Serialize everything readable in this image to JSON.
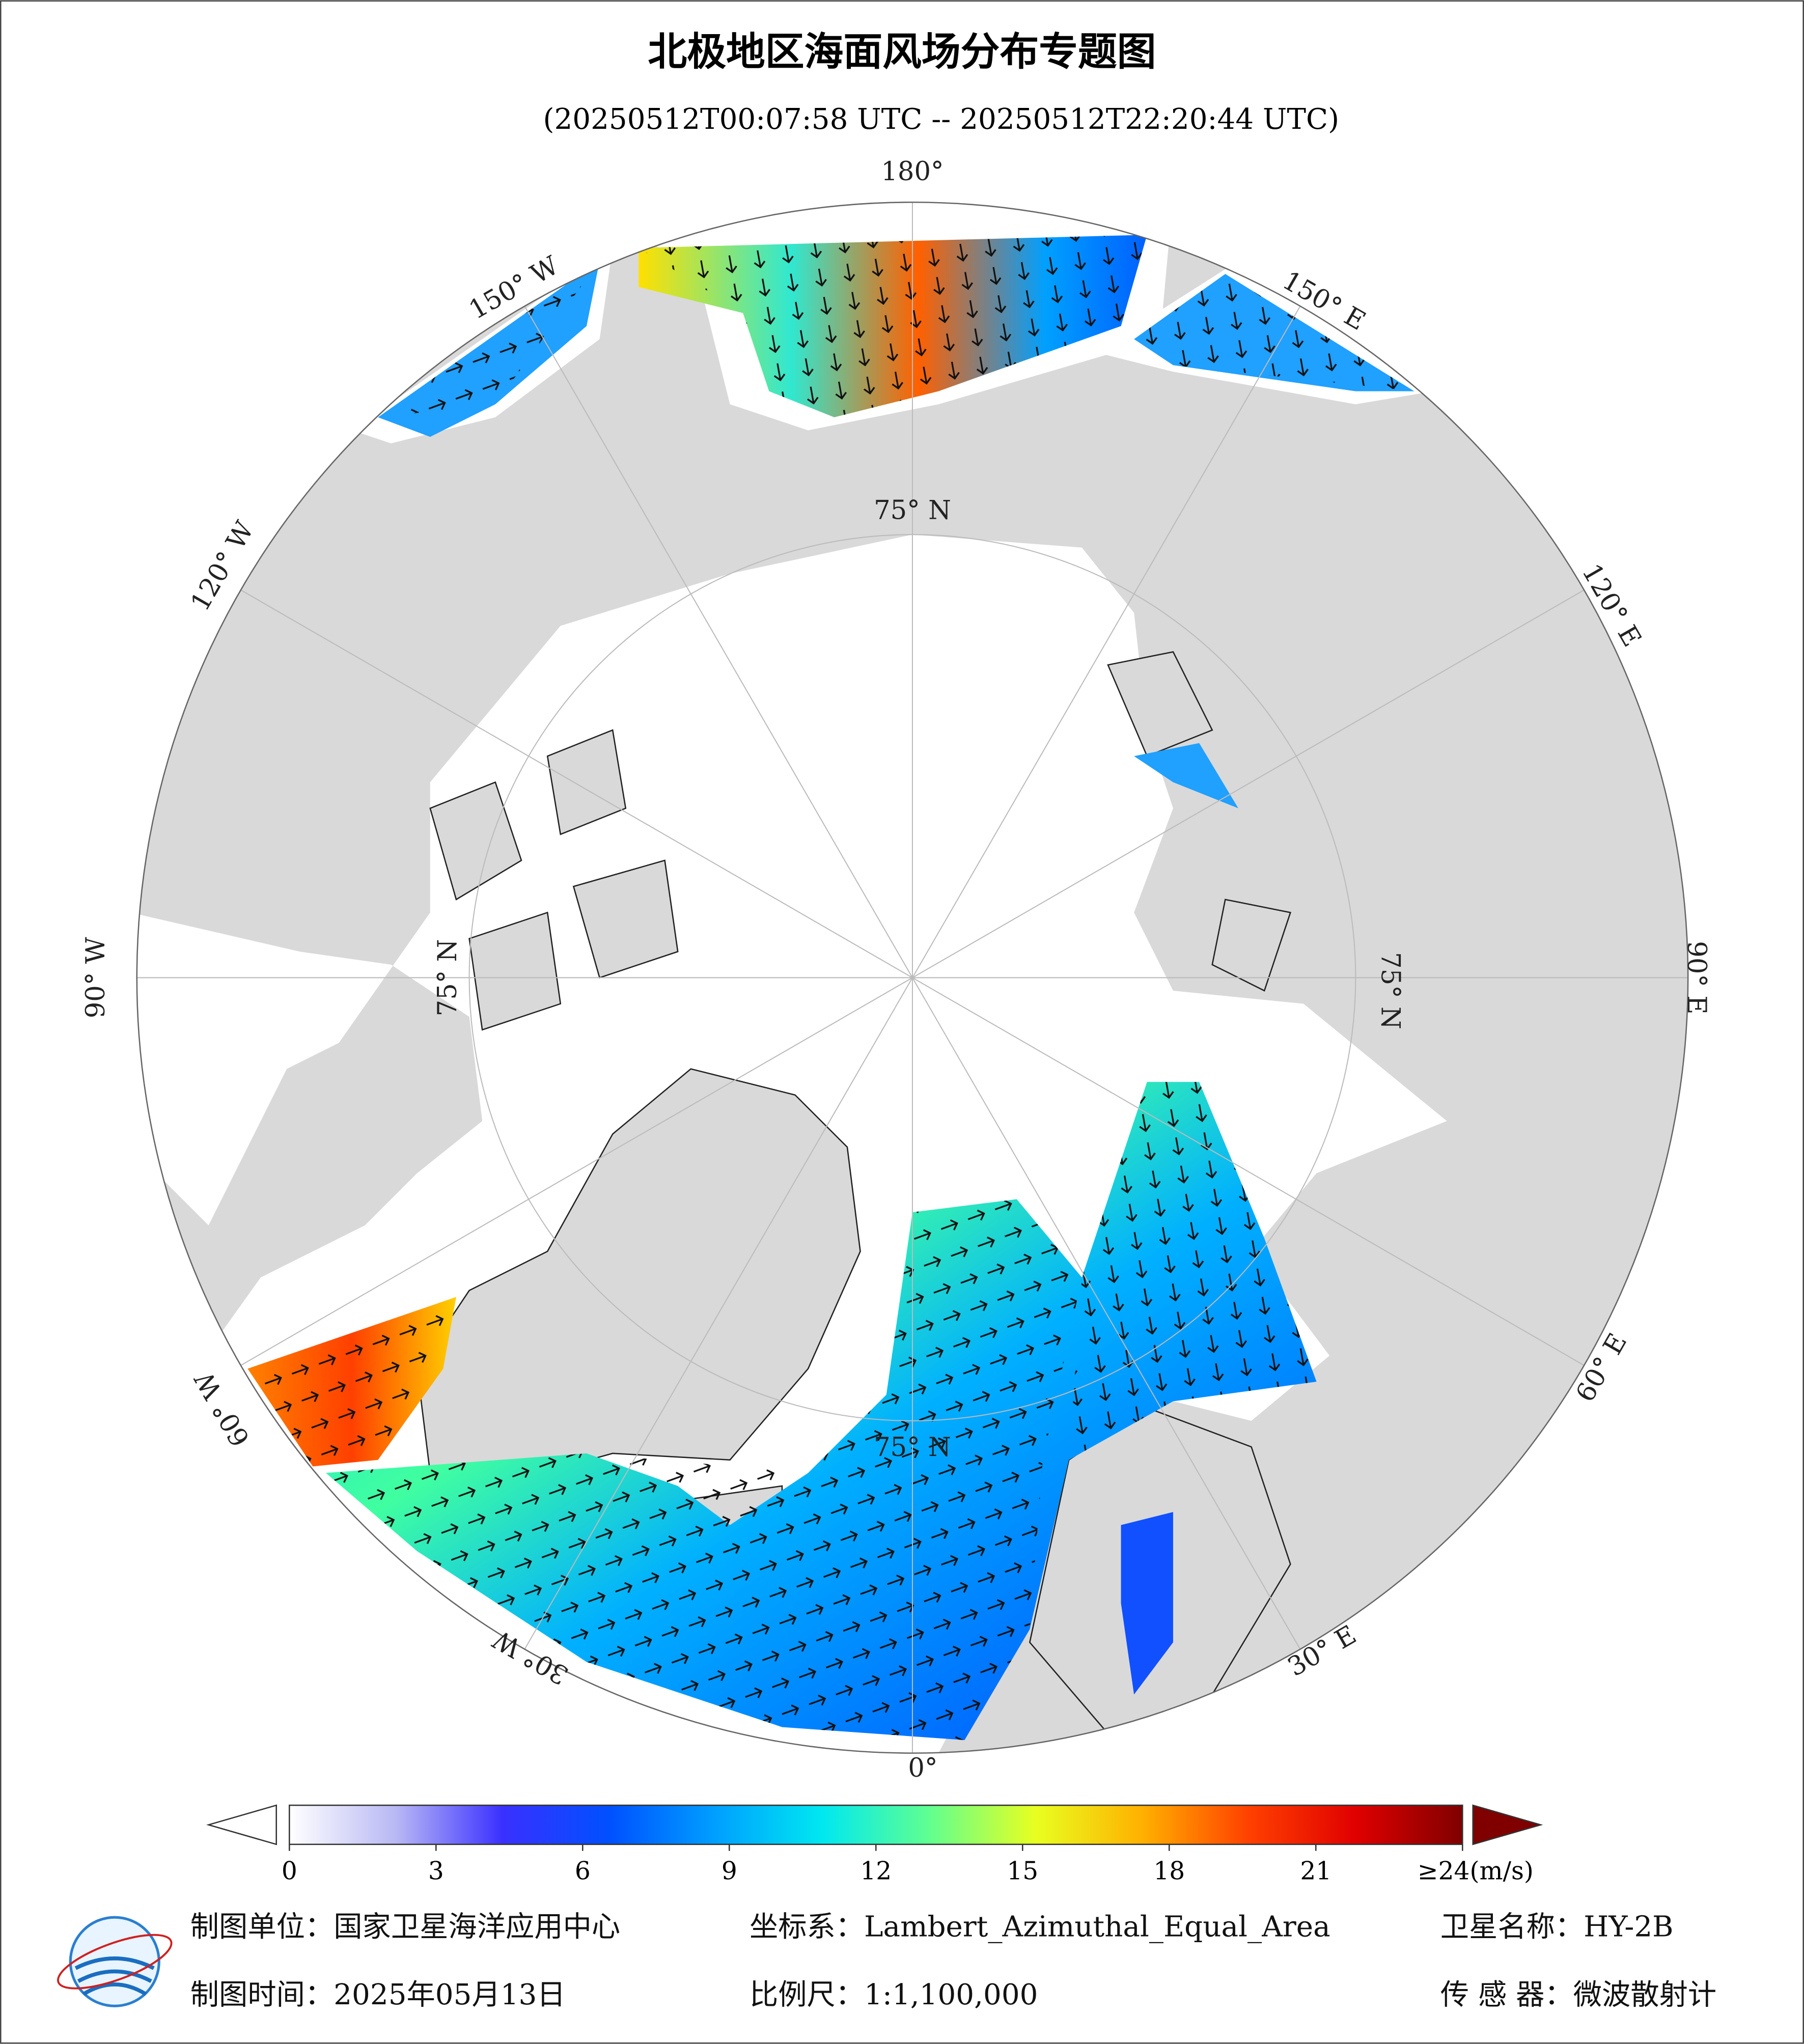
{
  "title": "北极地区海面风场分布专题图",
  "subtitle": "(20250512T00:07:58 UTC -- 20250512T22:20:44 UTC)",
  "graticule": {
    "meridian_labels": [
      "180°",
      "150° E",
      "120° E",
      "90° E",
      "60° E",
      "30° E",
      "0°",
      "30° W",
      "60° W",
      "90° W",
      "120° W",
      "150° W"
    ],
    "parallel_label": "75° N"
  },
  "colorbar": {
    "range": [
      0,
      24
    ],
    "ticks": [
      0,
      3,
      6,
      9,
      12,
      15,
      18,
      21,
      {
        "value": 24,
        "label": "≥24(m/s)"
      }
    ],
    "colors": [
      "#ffffff",
      "#b8b8f4",
      "#3a30ff",
      "#0050ff",
      "#00a0ff",
      "#00e8f0",
      "#60ff90",
      "#e8ff20",
      "#ffb000",
      "#ff4000",
      "#e00000",
      "#800000"
    ]
  },
  "footer": {
    "agency": "制图单位：国家卫星海洋应用中心",
    "projection": "坐标系：Lambert_Azimuthal_Equal_Area",
    "satellite": "卫星名称：HY-2B",
    "date": "制图时间：2025年05月13日",
    "scale": "比例尺：1:1,100,000",
    "sensor": "传 感 器：微波散射计"
  }
}
